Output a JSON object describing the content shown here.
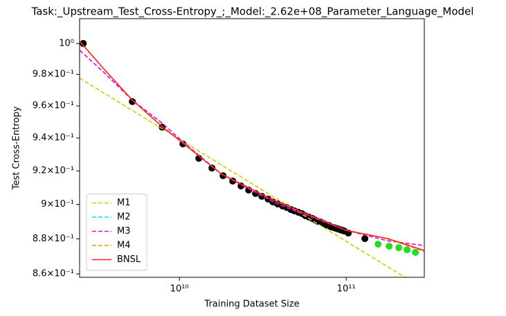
{
  "chart_data": {
    "type": "line",
    "title": "Task:_Upstream_Test_Cross-Entropy_;_Model:_2.62e+08_Parameter_Language_Model",
    "x_label": "Training Dataset Size",
    "y_label": "Test Cross-Entropy",
    "x_log": true,
    "y_log": true,
    "xlim": [
      2520000000.0,
      294000000000.0
    ],
    "ylim": [
      0.8581,
      1.0164
    ],
    "xticks": [
      {
        "value": 10000000000.0,
        "label": "10¹⁰"
      },
      {
        "value": 100000000000.0,
        "label": "10¹¹"
      }
    ],
    "yticks": [
      {
        "value": 0.86,
        "label": "8.6×10⁻¹"
      },
      {
        "value": 0.88,
        "label": "8.8×10⁻¹"
      },
      {
        "value": 0.9,
        "label": "9×10⁻¹"
      },
      {
        "value": 0.92,
        "label": "9.2×10⁻¹"
      },
      {
        "value": 0.94,
        "label": "9.4×10⁻¹"
      },
      {
        "value": 0.96,
        "label": "9.6×10⁻¹"
      },
      {
        "value": 0.98,
        "label": "9.8×10⁻¹"
      },
      {
        "value": 1,
        "label": "10⁰"
      }
    ],
    "legend": "lower left",
    "series": [
      {
        "style": "points",
        "color": "#000000",
        "x": [
          2650000000.0,
          5220000000.0,
          7880000000.0,
          10490000000.0,
          13070000000.0,
          15670000000.0,
          18260000000.0,
          20870000000.0,
          23400000000.0,
          26000000000.0,
          28600000000.0,
          31200000000.0,
          34000000000.0,
          36300000000.0,
          38800000000.0,
          41500000000.0,
          44000000000.0,
          46600000000.0,
          48900000000.0,
          51700000000.0,
          54300000000.0,
          56900000000.0,
          59700000000.0,
          62600000000.0,
          65100000000.0,
          67600000000.0,
          70200000000.0,
          73000000000.0,
          75800000000.0,
          78800000000.0,
          81000000000.0,
          84200000000.0,
          86700000000.0,
          89200000000.0,
          91800000000.0,
          94400000000.0,
          97200000000.0,
          102900000000.0,
          129400000000.0
        ],
        "values": [
          1.0,
          0.9627,
          0.9467,
          0.9364,
          0.9276,
          0.9217,
          0.9171,
          0.9139,
          0.911,
          0.9085,
          0.9065,
          0.9048,
          0.9032,
          0.9015,
          0.9003,
          0.8991,
          0.8982,
          0.897,
          0.8962,
          0.8954,
          0.8946,
          0.8934,
          0.8926,
          0.8918,
          0.8909,
          0.8901,
          0.8897,
          0.8889,
          0.8881,
          0.8877,
          0.8869,
          0.8865,
          0.8861,
          0.8857,
          0.8853,
          0.8849,
          0.8845,
          0.8833,
          0.8801
        ]
      },
      {
        "style": "points",
        "color": "#22dd22",
        "x": [
          155200000000.0,
          180800000000.0,
          206700000000.0,
          231800000000.0,
          260000000000.0
        ],
        "values": [
          0.8769,
          0.8757,
          0.8749,
          0.8737,
          0.8722
        ]
      },
      {
        "name": "M1",
        "style": "dashed",
        "color": "#cccc00",
        "x": [
          2520000000.0,
          225000000000.0
        ],
        "values": [
          0.9776,
          0.8581
        ]
      },
      {
        "name": "M2",
        "style": "dashed",
        "color": "#00e5ee",
        "x": [
          2526000000.0,
          3530000000.0,
          5220000000.0,
          7880000000.0,
          10490000000.0,
          17910000000.0,
          38500000000.0,
          100000000000.0,
          177400000000.0,
          294400000000.0
        ],
        "values": [
          1.0014,
          0.9834,
          0.9636,
          0.9471,
          0.9369,
          0.918,
          0.9015,
          0.8849,
          0.88,
          0.873
        ]
      },
      {
        "name": "M3",
        "style": "dashed",
        "color": "#e600e6",
        "x": [
          2526000000.0,
          3530000000.0,
          5220000000.0,
          7880000000.0,
          10490000000.0,
          17910000000.0,
          38500000000.0,
          100000000000.0,
          177400000000.0,
          294400000000.0
        ],
        "values": [
          0.9955,
          0.9812,
          0.9636,
          0.9492,
          0.9377,
          0.918,
          0.9003,
          0.8849,
          0.8788,
          0.8761
        ]
      },
      {
        "name": "M4",
        "style": "dashed",
        "color": "#ff9900",
        "x": [
          2526000000.0,
          3530000000.0,
          5220000000.0,
          7880000000.0,
          10490000000.0,
          17910000000.0,
          38500000000.0,
          100000000000.0,
          177400000000.0,
          294400000000.0
        ],
        "values": [
          1.0014,
          0.9834,
          0.9636,
          0.9471,
          0.9369,
          0.918,
          0.9015,
          0.8849,
          0.8799,
          0.8727
        ]
      },
      {
        "name": "BNSL",
        "style": "solid",
        "color": "#ff2020",
        "x": [
          2526000000.0,
          3530000000.0,
          5220000000.0,
          7880000000.0,
          10490000000.0,
          17910000000.0,
          38500000000.0,
          100000000000.0,
          177400000000.0,
          294400000000.0
        ],
        "values": [
          1.0014,
          0.9834,
          0.9636,
          0.9471,
          0.9369,
          0.918,
          0.9015,
          0.8849,
          0.8801,
          0.8733
        ]
      }
    ]
  }
}
